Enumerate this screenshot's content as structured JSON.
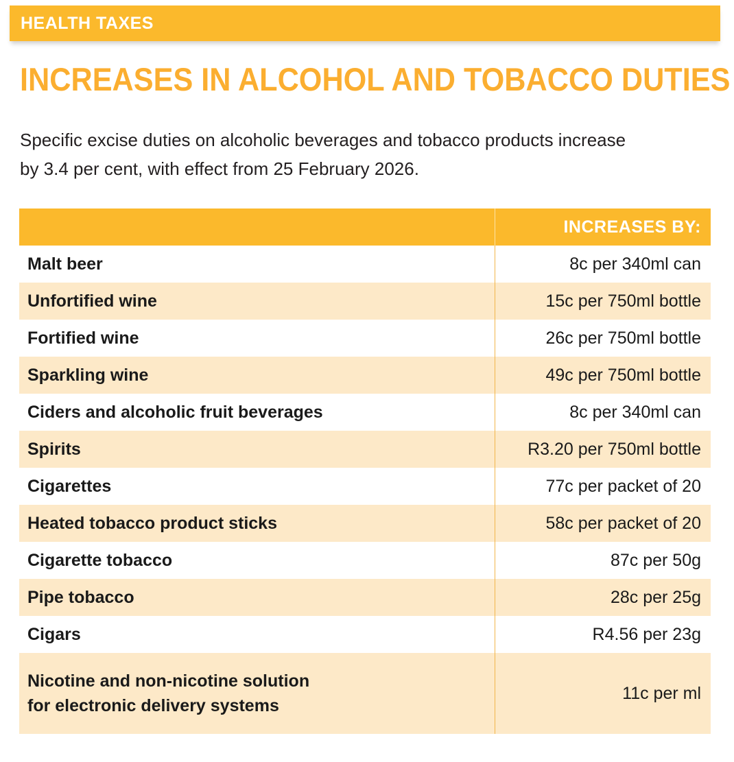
{
  "banner": {
    "label": "HEALTH TAXES",
    "color": "#fbb92c"
  },
  "title": "INCREASES IN ALCOHOL AND TOBACCO DUTIES",
  "intro": {
    "line1": "Specific excise duties on alcoholic beverages and tobacco products increase",
    "line2": "by 3.4 per cent, with effect from 25 February 2026."
  },
  "table": {
    "header": {
      "col1": "",
      "col2": "INCREASES BY:"
    },
    "rows": [
      {
        "product": "Malt beer",
        "amount": "8c per 340ml can"
      },
      {
        "product": "Unfortified wine",
        "amount": "15c per 750ml bottle"
      },
      {
        "product": "Fortified wine",
        "amount": "26c per 750ml bottle"
      },
      {
        "product": "Sparkling wine",
        "amount": "49c per 750ml bottle"
      },
      {
        "product": "Ciders and alcoholic fruit beverages",
        "amount": "8c per 340ml can"
      },
      {
        "product": "Spirits",
        "amount": "R3.20 per 750ml bottle"
      },
      {
        "product": "Cigarettes",
        "amount": "77c per packet of 20"
      },
      {
        "product": "Heated tobacco product sticks",
        "amount": "58c per packet of 20"
      },
      {
        "product": "Cigarette tobacco",
        "amount": "87c per 50g"
      },
      {
        "product": "Pipe tobacco",
        "amount": "28c per 25g"
      },
      {
        "product": "Cigars",
        "amount": "R4.56 per 23g"
      }
    ],
    "last_row": {
      "product_line1": "Nicotine and non-nicotine solution",
      "product_line2": "for electronic delivery systems",
      "amount": "11c per ml"
    }
  },
  "colors": {
    "accent": "#fbb92c",
    "title": "#fbae30",
    "row_stripe": "#fde9c8"
  }
}
